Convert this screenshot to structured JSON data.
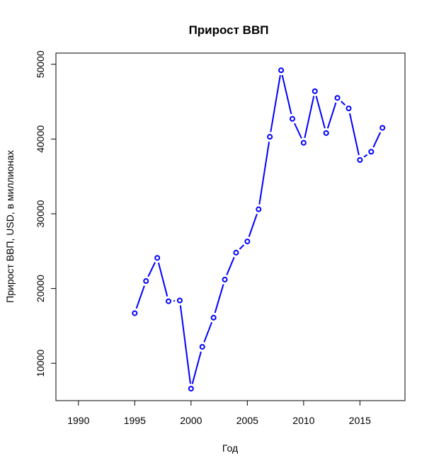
{
  "chart_data": {
    "type": "line",
    "title": "Прирост ВВП",
    "xlabel": "Год",
    "ylabel": "Прирост ВВП, USD, в миллионах",
    "xlim": [
      1988,
      2019
    ],
    "ylim": [
      5000,
      51500
    ],
    "x_ticks": [
      1990,
      1995,
      2000,
      2005,
      2010,
      2015
    ],
    "y_ticks": [
      10000,
      20000,
      30000,
      40000,
      50000
    ],
    "grid": false,
    "line_color": "#0000ff",
    "series": [
      {
        "x": [
          1995,
          1996,
          1997,
          1998,
          1999,
          2000,
          2001,
          2002,
          2003,
          2004,
          2005,
          2006,
          2007,
          2008,
          2009,
          2010,
          2011,
          2012,
          2013,
          2014,
          2015,
          2016,
          2017
        ],
        "values": [
          16700,
          21000,
          24100,
          18300,
          18400,
          6600,
          12200,
          16100,
          21200,
          24800,
          26300,
          30600,
          40300,
          49200,
          42700,
          39500,
          46400,
          40800,
          45500,
          44100,
          37200,
          38300,
          41500
        ]
      }
    ]
  }
}
